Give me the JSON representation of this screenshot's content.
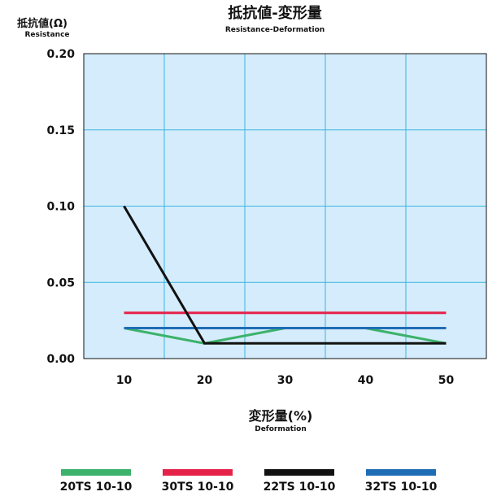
{
  "chart_data": {
    "type": "line",
    "title": "抵抗値-変形量",
    "subtitle": "Resistance-Deformation",
    "ylabel": "抵抗値(Ω)",
    "ylabel_sub": "Resistance",
    "xlabel": "変形量(%)",
    "xlabel_sub": "Deformation",
    "x": [
      10,
      20,
      30,
      40,
      50
    ],
    "x_ticks": [
      "10",
      "20",
      "30",
      "40",
      "50"
    ],
    "xlim": [
      5,
      55
    ],
    "ylim": [
      0,
      0.2
    ],
    "y_ticks": [
      "0.00",
      "0.05",
      "0.10",
      "0.15",
      "0.20"
    ],
    "grid": true,
    "legend_position": "bottom",
    "series": [
      {
        "name": "20TS 10-10",
        "color": "#3cb26a",
        "values": [
          0.02,
          0.01,
          0.02,
          0.02,
          0.01
        ]
      },
      {
        "name": "30TS 10-10",
        "color": "#e5224a",
        "values": [
          0.03,
          0.03,
          0.03,
          0.03,
          0.03
        ]
      },
      {
        "name": "22TS 10-10",
        "color": "#111111",
        "values": [
          0.1,
          0.01,
          0.01,
          0.01,
          0.01
        ]
      },
      {
        "name": "32TS 10-10",
        "color": "#1f6db5",
        "values": [
          0.02,
          0.02,
          0.02,
          0.02,
          0.02
        ]
      }
    ],
    "plot_background": "#d4ecfb",
    "grid_color": "#3db4e0"
  }
}
